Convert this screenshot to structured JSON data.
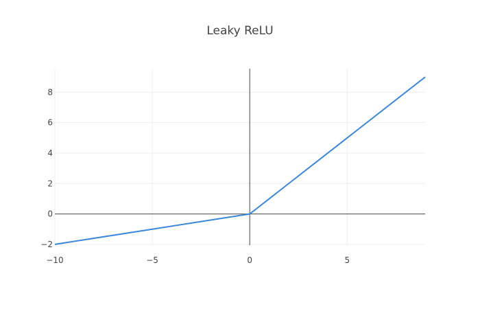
{
  "chart_data": {
    "type": "line",
    "title": "Leaky ReLU",
    "xlabel": "",
    "ylabel": "",
    "xlim": [
      -10,
      9
    ],
    "ylim": [
      -2.05,
      9.55
    ],
    "x_ticks": [
      -10,
      -5,
      0,
      5
    ],
    "y_ticks": [
      -2,
      0,
      2,
      4,
      6,
      8
    ],
    "x_tick_labels": [
      "−10",
      "−5",
      "0",
      "5"
    ],
    "y_tick_labels": [
      "−2",
      "0",
      "2",
      "4",
      "6",
      "8"
    ],
    "grid": true,
    "zero_lines": true,
    "series": [
      {
        "color": "#3a87db",
        "x": [
          -10,
          -5,
          -1,
          -0.5,
          -0.2,
          0,
          0.2,
          0.5,
          1,
          2,
          5,
          9
        ],
        "y": [
          -2,
          -1,
          -0.2,
          -0.1,
          -0.04,
          0,
          0.2,
          0.5,
          1,
          2,
          5,
          9
        ]
      }
    ]
  }
}
